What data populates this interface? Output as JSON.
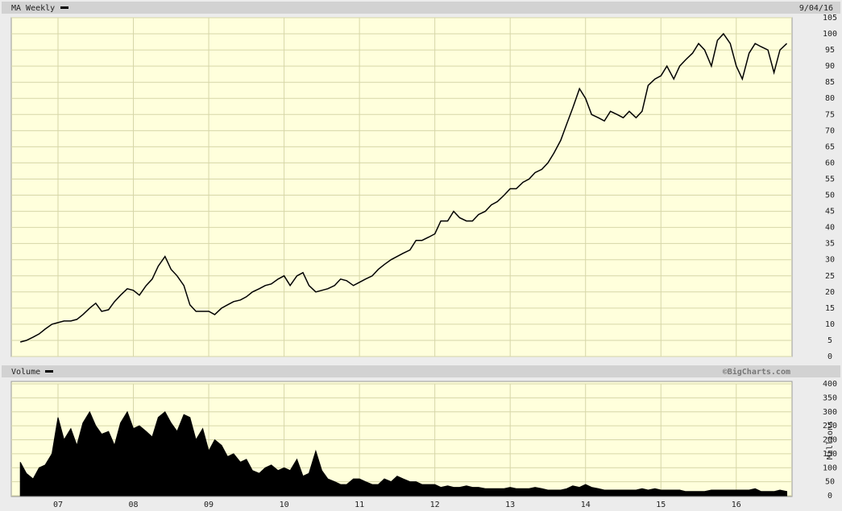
{
  "chart_data": [
    {
      "type": "line",
      "title": "MA Weekly",
      "date": "9/04/16",
      "color": "#000000",
      "grid": true,
      "xlim": [
        2006.38,
        2016.74
      ],
      "x": [
        2006.5,
        2006.58,
        2006.67,
        2006.75,
        2006.83,
        2006.92,
        2007,
        2007.08,
        2007.17,
        2007.25,
        2007.33,
        2007.42,
        2007.5,
        2007.58,
        2007.67,
        2007.75,
        2007.83,
        2007.92,
        2008,
        2008.08,
        2008.17,
        2008.25,
        2008.33,
        2008.42,
        2008.5,
        2008.58,
        2008.67,
        2008.75,
        2008.83,
        2008.92,
        2009,
        2009.08,
        2009.17,
        2009.25,
        2009.33,
        2009.42,
        2009.5,
        2009.58,
        2009.67,
        2009.75,
        2009.83,
        2009.92,
        2010,
        2010.08,
        2010.17,
        2010.25,
        2010.33,
        2010.42,
        2010.5,
        2010.58,
        2010.67,
        2010.75,
        2010.83,
        2010.92,
        2011,
        2011.08,
        2011.17,
        2011.25,
        2011.33,
        2011.42,
        2011.5,
        2011.58,
        2011.67,
        2011.75,
        2011.83,
        2011.92,
        2012,
        2012.08,
        2012.17,
        2012.25,
        2012.33,
        2012.42,
        2012.5,
        2012.58,
        2012.67,
        2012.75,
        2012.83,
        2012.92,
        2013,
        2013.08,
        2013.17,
        2013.25,
        2013.33,
        2013.42,
        2013.5,
        2013.58,
        2013.67,
        2013.75,
        2013.83,
        2013.92,
        2014,
        2014.08,
        2014.17,
        2014.25,
        2014.33,
        2014.42,
        2014.5,
        2014.58,
        2014.67,
        2014.75,
        2014.83,
        2014.92,
        2015,
        2015.08,
        2015.17,
        2015.25,
        2015.33,
        2015.42,
        2015.5,
        2015.58,
        2015.67,
        2015.75,
        2015.83,
        2015.92,
        2016,
        2016.08,
        2016.17,
        2016.25,
        2016.33,
        2016.42,
        2016.5,
        2016.58,
        2016.67
      ],
      "values": [
        4.5,
        5,
        6,
        7,
        8.5,
        10,
        10.5,
        11,
        11,
        11.5,
        13,
        15,
        16.5,
        14,
        14.5,
        17,
        19,
        21,
        20.5,
        19,
        22,
        24,
        28,
        31,
        27,
        25,
        22,
        16,
        14,
        14,
        14,
        13,
        15,
        16,
        17,
        17.5,
        18.5,
        20,
        21,
        22,
        22.5,
        24,
        25,
        22,
        25,
        26,
        22,
        20,
        20.5,
        21,
        22,
        24,
        23.5,
        22,
        23,
        24,
        25,
        27,
        28.5,
        30,
        31,
        32,
        33,
        36,
        36,
        37,
        38,
        42,
        42,
        45,
        43,
        42,
        42,
        44,
        45,
        47,
        48,
        50,
        52,
        52,
        54,
        55,
        57,
        58,
        60,
        63,
        67,
        72,
        77,
        83,
        80,
        75,
        74,
        73,
        76,
        75,
        74,
        76,
        74,
        76,
        84,
        86,
        87,
        90,
        86,
        90,
        92,
        94,
        97,
        95,
        90,
        98,
        100,
        97,
        90,
        86,
        94,
        97,
        96,
        95,
        88,
        95,
        97
      ],
      "ylim": [
        0,
        105
      ],
      "yticks": [
        0,
        5,
        10,
        15,
        20,
        25,
        30,
        35,
        40,
        45,
        50,
        55,
        60,
        65,
        70,
        75,
        80,
        85,
        90,
        95,
        100,
        105
      ]
    },
    {
      "type": "area",
      "title": "Volume",
      "source": "©BigCharts.com",
      "ylabel": "Millions",
      "color": "#000000",
      "grid": true,
      "xlim": [
        2006.38,
        2016.74
      ],
      "xticks": [
        {
          "value": 2007,
          "label": "07"
        },
        {
          "value": 2008,
          "label": "08"
        },
        {
          "value": 2009,
          "label": "09"
        },
        {
          "value": 2010,
          "label": "10"
        },
        {
          "value": 2011,
          "label": "11"
        },
        {
          "value": 2012,
          "label": "12"
        },
        {
          "value": 2013,
          "label": "13"
        },
        {
          "value": 2014,
          "label": "14"
        },
        {
          "value": 2015,
          "label": "15"
        },
        {
          "value": 2016,
          "label": "16"
        }
      ],
      "x": [
        2006.5,
        2006.58,
        2006.67,
        2006.75,
        2006.83,
        2006.92,
        2007,
        2007.08,
        2007.17,
        2007.25,
        2007.33,
        2007.42,
        2007.5,
        2007.58,
        2007.67,
        2007.75,
        2007.83,
        2007.92,
        2008,
        2008.08,
        2008.17,
        2008.25,
        2008.33,
        2008.42,
        2008.5,
        2008.58,
        2008.67,
        2008.75,
        2008.83,
        2008.92,
        2009,
        2009.08,
        2009.17,
        2009.25,
        2009.33,
        2009.42,
        2009.5,
        2009.58,
        2009.67,
        2009.75,
        2009.83,
        2009.92,
        2010,
        2010.08,
        2010.17,
        2010.25,
        2010.33,
        2010.42,
        2010.5,
        2010.58,
        2010.67,
        2010.75,
        2010.83,
        2010.92,
        2011,
        2011.08,
        2011.17,
        2011.25,
        2011.33,
        2011.42,
        2011.5,
        2011.58,
        2011.67,
        2011.75,
        2011.83,
        2011.92,
        2012,
        2012.08,
        2012.17,
        2012.25,
        2012.33,
        2012.42,
        2012.5,
        2012.58,
        2012.67,
        2012.75,
        2012.83,
        2012.92,
        2013,
        2013.08,
        2013.17,
        2013.25,
        2013.33,
        2013.42,
        2013.5,
        2013.58,
        2013.67,
        2013.75,
        2013.83,
        2013.92,
        2014,
        2014.08,
        2014.17,
        2014.25,
        2014.33,
        2014.42,
        2014.5,
        2014.58,
        2014.67,
        2014.75,
        2014.83,
        2014.92,
        2015,
        2015.08,
        2015.17,
        2015.25,
        2015.33,
        2015.42,
        2015.5,
        2015.58,
        2015.67,
        2015.75,
        2015.83,
        2015.92,
        2016,
        2016.08,
        2016.17,
        2016.25,
        2016.33,
        2016.42,
        2016.5,
        2016.58,
        2016.67
      ],
      "values": [
        120,
        80,
        60,
        100,
        110,
        150,
        280,
        200,
        240,
        180,
        260,
        300,
        250,
        220,
        230,
        180,
        260,
        300,
        240,
        250,
        230,
        210,
        280,
        300,
        260,
        230,
        290,
        280,
        200,
        240,
        160,
        200,
        180,
        140,
        150,
        120,
        130,
        90,
        80,
        100,
        110,
        90,
        100,
        90,
        130,
        70,
        80,
        160,
        90,
        60,
        50,
        40,
        40,
        60,
        60,
        50,
        40,
        40,
        60,
        50,
        70,
        60,
        50,
        50,
        40,
        40,
        40,
        30,
        35,
        30,
        30,
        35,
        30,
        30,
        25,
        25,
        25,
        25,
        30,
        25,
        25,
        25,
        30,
        25,
        20,
        20,
        20,
        25,
        35,
        30,
        40,
        30,
        25,
        20,
        20,
        20,
        20,
        20,
        20,
        25,
        20,
        25,
        20,
        20,
        20,
        20,
        15,
        15,
        15,
        15,
        20,
        20,
        20,
        20,
        20,
        20,
        20,
        25,
        15,
        15,
        15,
        20,
        15
      ],
      "ylim": [
        0,
        400
      ],
      "yticks": [
        0,
        50,
        100,
        150,
        200,
        250,
        300,
        350,
        400
      ]
    }
  ]
}
